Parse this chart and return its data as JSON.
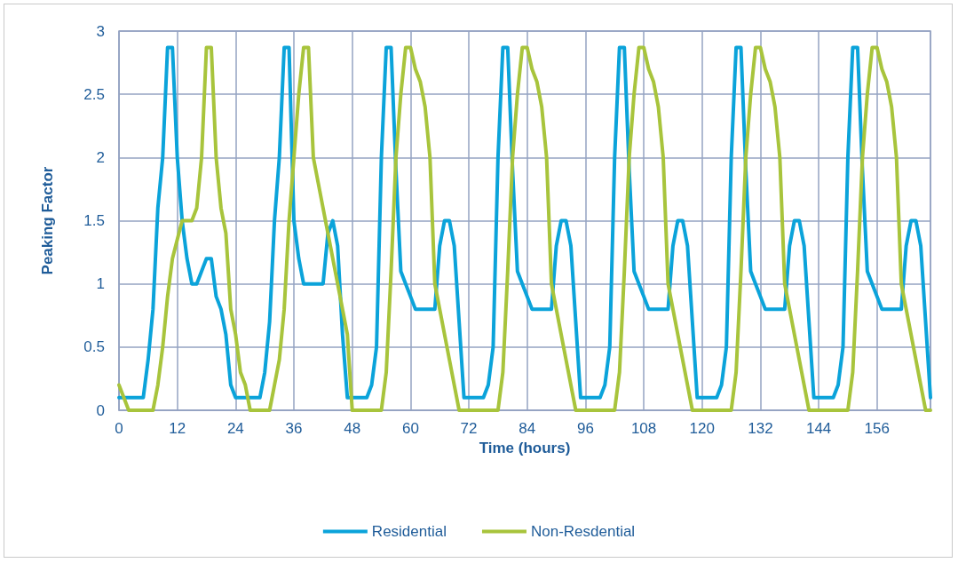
{
  "chart_data": {
    "type": "line",
    "xlabel": "Time (hours)",
    "ylabel": "Peaking Factor",
    "x": [
      0,
      1,
      2,
      3,
      4,
      5,
      6,
      7,
      8,
      9,
      10,
      11,
      12,
      13,
      14,
      15,
      16,
      17,
      18,
      19,
      20,
      21,
      22,
      23,
      24,
      25,
      26,
      27,
      28,
      29,
      30,
      31,
      32,
      33,
      34,
      35,
      36,
      37,
      38,
      39,
      40,
      41,
      42,
      43,
      44,
      45,
      46,
      47,
      48,
      49,
      50,
      51,
      52,
      53,
      54,
      55,
      56,
      57,
      58,
      59,
      60,
      61,
      62,
      63,
      64,
      65,
      66,
      67,
      68,
      69,
      70,
      71,
      72,
      73,
      74,
      75,
      76,
      77,
      78,
      79,
      80,
      81,
      82,
      83,
      84,
      85,
      86,
      87,
      88,
      89,
      90,
      91,
      92,
      93,
      94,
      95,
      96,
      97,
      98,
      99,
      100,
      101,
      102,
      103,
      104,
      105,
      106,
      107,
      108,
      109,
      110,
      111,
      112,
      113,
      114,
      115,
      116,
      117,
      118,
      119,
      120,
      121,
      122,
      123,
      124,
      125,
      126,
      127,
      128,
      129,
      130,
      131,
      132,
      133,
      134,
      135,
      136,
      137,
      138,
      139,
      140,
      141,
      142,
      143,
      144,
      145,
      146,
      147,
      148,
      149,
      150,
      151,
      152,
      153,
      154,
      155,
      156,
      157,
      158,
      159,
      160,
      161,
      162,
      163,
      164,
      165,
      166,
      167
    ],
    "series": [
      {
        "name": "Residential",
        "color": "#0ba3da",
        "values": [
          0.1,
          0.1,
          0.1,
          0.1,
          0.1,
          0.1,
          0.4,
          0.8,
          1.6,
          2.0,
          2.87,
          2.87,
          2.0,
          1.5,
          1.2,
          1.0,
          1.0,
          1.1,
          1.2,
          1.2,
          0.9,
          0.8,
          0.6,
          0.2,
          0.1,
          0.1,
          0.1,
          0.1,
          0.1,
          0.1,
          0.3,
          0.7,
          1.5,
          2.0,
          2.87,
          2.87,
          1.5,
          1.2,
          1.0,
          1.0,
          1.0,
          1.0,
          1.0,
          1.4,
          1.5,
          1.3,
          0.6,
          0.1,
          0.1,
          0.1,
          0.1,
          0.1,
          0.2,
          0.5,
          2.0,
          2.87,
          2.87,
          1.9,
          1.1,
          1.0,
          0.9,
          0.8,
          0.8,
          0.8,
          0.8,
          0.8,
          1.3,
          1.5,
          1.5,
          1.3,
          0.7,
          0.1,
          0.1,
          0.1,
          0.1,
          0.1,
          0.2,
          0.5,
          2.0,
          2.87,
          2.87,
          1.9,
          1.1,
          1.0,
          0.9,
          0.8,
          0.8,
          0.8,
          0.8,
          0.8,
          1.3,
          1.5,
          1.5,
          1.3,
          0.7,
          0.1,
          0.1,
          0.1,
          0.1,
          0.1,
          0.2,
          0.5,
          2.0,
          2.87,
          2.87,
          1.9,
          1.1,
          1.0,
          0.9,
          0.8,
          0.8,
          0.8,
          0.8,
          0.8,
          1.3,
          1.5,
          1.5,
          1.3,
          0.7,
          0.1,
          0.1,
          0.1,
          0.1,
          0.1,
          0.2,
          0.5,
          2.0,
          2.87,
          2.87,
          1.9,
          1.1,
          1.0,
          0.9,
          0.8,
          0.8,
          0.8,
          0.8,
          0.8,
          1.3,
          1.5,
          1.5,
          1.3,
          0.7,
          0.1,
          0.1,
          0.1,
          0.1,
          0.1,
          0.2,
          0.5,
          2.0,
          2.87,
          2.87,
          1.9,
          1.1,
          1.0,
          0.9,
          0.8,
          0.8,
          0.8,
          0.8,
          0.8,
          1.3,
          1.5,
          1.5,
          1.3,
          0.7,
          0.1
        ]
      },
      {
        "name": "Non-Resdential",
        "color": "#a8c43c",
        "values": [
          0.2,
          0.1,
          0,
          0,
          0,
          0,
          0,
          0,
          0.2,
          0.5,
          0.9,
          1.2,
          1.35,
          1.5,
          1.5,
          1.5,
          1.6,
          2.0,
          2.87,
          2.87,
          2.0,
          1.6,
          1.4,
          0.8,
          0.6,
          0.3,
          0.2,
          0,
          0,
          0,
          0,
          0,
          0.2,
          0.4,
          0.8,
          1.5,
          2.0,
          2.5,
          2.87,
          2.87,
          2.0,
          1.8,
          1.6,
          1.4,
          1.2,
          1.0,
          0.8,
          0.6,
          0,
          0,
          0,
          0,
          0,
          0,
          0,
          0.3,
          1.1,
          2.0,
          2.5,
          2.87,
          2.87,
          2.7,
          2.6,
          2.4,
          2.0,
          1.0,
          0.8,
          0.6,
          0.4,
          0.2,
          0,
          0,
          0,
          0,
          0,
          0,
          0,
          0,
          0,
          0.3,
          1.1,
          2.0,
          2.5,
          2.87,
          2.87,
          2.7,
          2.6,
          2.4,
          2.0,
          1.0,
          0.8,
          0.6,
          0.4,
          0.2,
          0,
          0,
          0,
          0,
          0,
          0,
          0,
          0,
          0,
          0.3,
          1.1,
          2.0,
          2.5,
          2.87,
          2.87,
          2.7,
          2.6,
          2.4,
          2.0,
          1.0,
          0.8,
          0.6,
          0.4,
          0.2,
          0,
          0,
          0,
          0,
          0,
          0,
          0,
          0,
          0,
          0.3,
          1.1,
          2.0,
          2.5,
          2.87,
          2.87,
          2.7,
          2.6,
          2.4,
          2.0,
          1.0,
          0.8,
          0.6,
          0.4,
          0.2,
          0,
          0,
          0,
          0,
          0,
          0,
          0,
          0,
          0,
          0.3,
          1.1,
          2.0,
          2.5,
          2.87,
          2.87,
          2.7,
          2.6,
          2.4,
          2.0,
          1.0,
          0.8,
          0.6,
          0.4,
          0.2,
          0,
          0
        ]
      }
    ],
    "xlim": [
      0,
      167
    ],
    "xticks": [
      0,
      12,
      24,
      36,
      48,
      60,
      72,
      84,
      96,
      108,
      120,
      132,
      144,
      156
    ],
    "ylim": [
      0,
      3
    ],
    "yticks": [
      0,
      0.5,
      1,
      1.5,
      2,
      2.5,
      3
    ],
    "grid": true,
    "legend": "bottom",
    "marker": "none",
    "line_style": "solid"
  }
}
